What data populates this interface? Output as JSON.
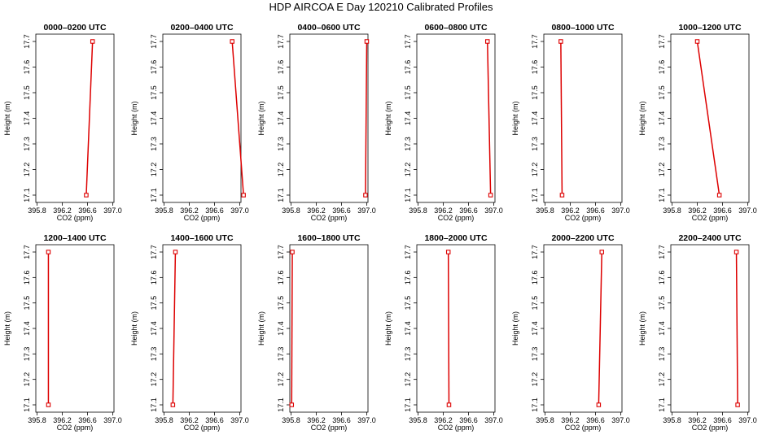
{
  "title": "HDP AIRCOA E  Day 120210  Calibrated Profiles",
  "colors": {
    "series": "#dd0000",
    "axis": "#000000",
    "background": "#ffffff"
  },
  "chart_data": {
    "type": "line",
    "layout": "2 rows x 6 columns",
    "xlabel": "CO2 (ppm)",
    "ylabel": "Height (m)",
    "xlim": [
      395.8,
      397.0
    ],
    "ylim": [
      17.1,
      17.7
    ],
    "xticks": [
      "395.8",
      "396.2",
      "396.6",
      "397.0"
    ],
    "yticks": [
      "17.1",
      "17.2",
      "17.3",
      "17.4",
      "17.5",
      "17.6",
      "17.7"
    ],
    "marker": "open-square",
    "panels": [
      {
        "title": "0000–0200 UTC",
        "points": [
          {
            "x": 396.58,
            "y": 17.1
          },
          {
            "x": 396.68,
            "y": 17.7
          }
        ]
      },
      {
        "title": "0200–0400 UTC",
        "points": [
          {
            "x": 397.06,
            "y": 17.1
          },
          {
            "x": 396.88,
            "y": 17.7
          }
        ]
      },
      {
        "title": "0400–0600 UTC",
        "points": [
          {
            "x": 396.98,
            "y": 17.1
          },
          {
            "x": 397.0,
            "y": 17.7
          }
        ]
      },
      {
        "title": "0600–0800 UTC",
        "points": [
          {
            "x": 396.95,
            "y": 17.1
          },
          {
            "x": 396.9,
            "y": 17.7
          }
        ]
      },
      {
        "title": "0800–1000 UTC",
        "points": [
          {
            "x": 396.07,
            "y": 17.1
          },
          {
            "x": 396.05,
            "y": 17.7
          }
        ]
      },
      {
        "title": "1000–1200 UTC",
        "points": [
          {
            "x": 396.55,
            "y": 17.1
          },
          {
            "x": 396.2,
            "y": 17.7
          }
        ]
      },
      {
        "title": "1200–1400 UTC",
        "points": [
          {
            "x": 395.98,
            "y": 17.1
          },
          {
            "x": 395.98,
            "y": 17.7
          }
        ]
      },
      {
        "title": "1400–1600 UTC",
        "points": [
          {
            "x": 395.94,
            "y": 17.1
          },
          {
            "x": 395.98,
            "y": 17.7
          }
        ]
      },
      {
        "title": "1600–1800 UTC",
        "points": [
          {
            "x": 395.81,
            "y": 17.1
          },
          {
            "x": 395.82,
            "y": 17.7
          }
        ]
      },
      {
        "title": "1800–2000 UTC",
        "points": [
          {
            "x": 396.29,
            "y": 17.1
          },
          {
            "x": 396.28,
            "y": 17.7
          }
        ]
      },
      {
        "title": "2000–2200 UTC",
        "points": [
          {
            "x": 396.65,
            "y": 17.1
          },
          {
            "x": 396.7,
            "y": 17.7
          }
        ]
      },
      {
        "title": "2200–2400 UTC",
        "points": [
          {
            "x": 396.84,
            "y": 17.1
          },
          {
            "x": 396.82,
            "y": 17.7
          }
        ]
      }
    ]
  }
}
